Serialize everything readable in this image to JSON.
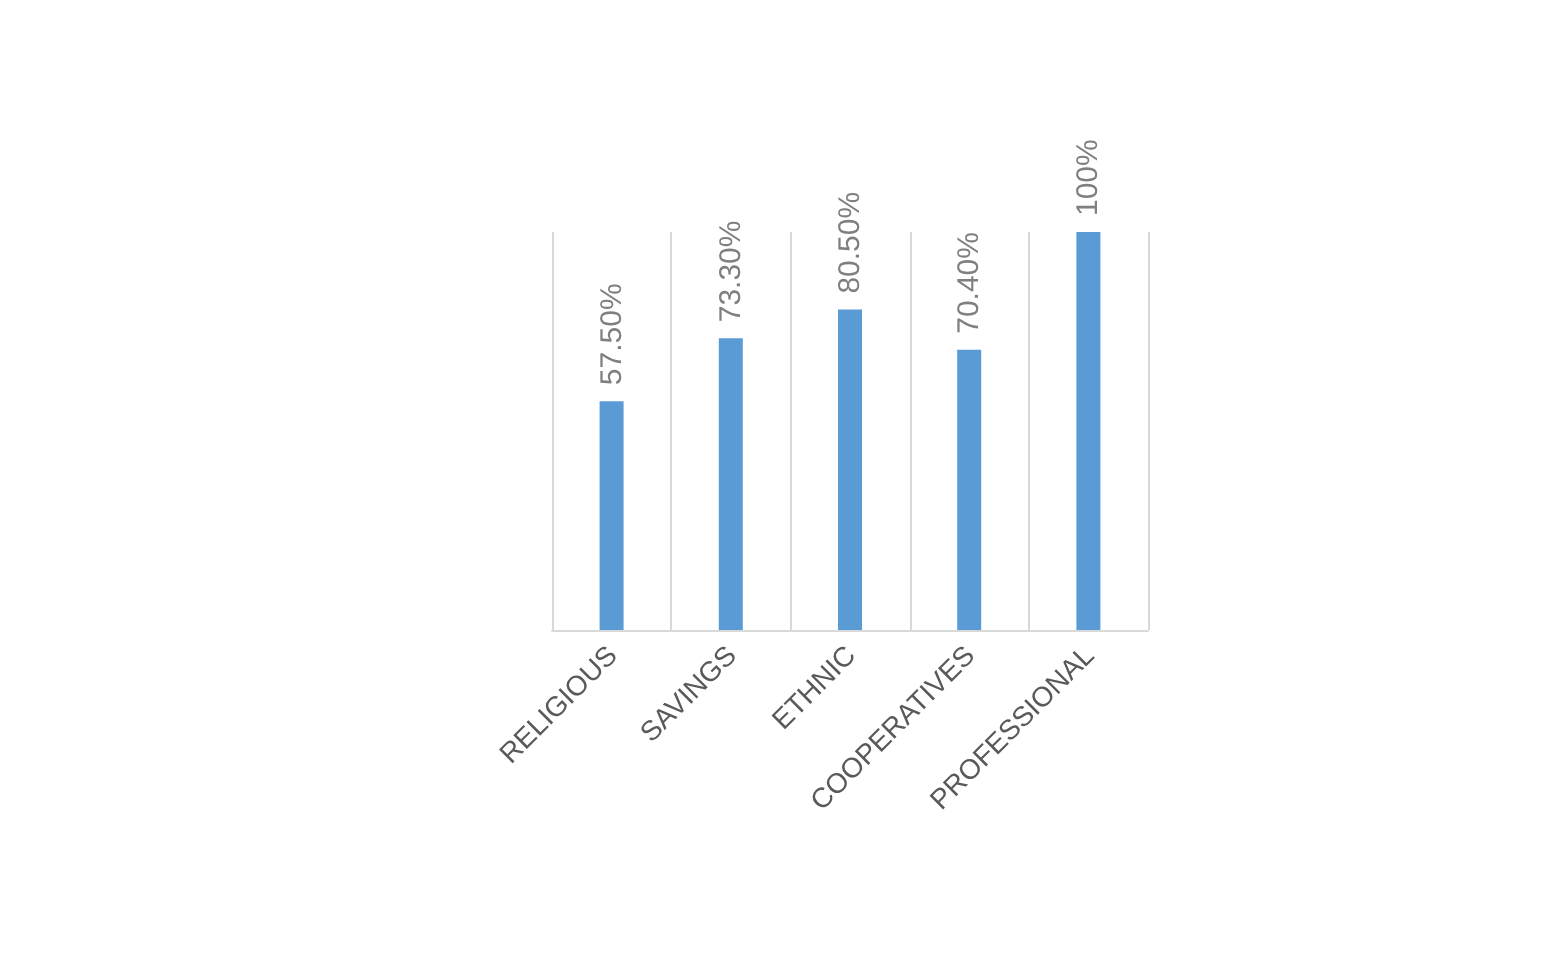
{
  "chart_data": {
    "type": "bar",
    "categories": [
      "RELIGIOUS",
      "SAVINGS",
      "ETHNIC",
      "COOPERATIVES",
      "PROFESSIONAL"
    ],
    "values": [
      57.5,
      73.3,
      80.5,
      70.4,
      100
    ],
    "value_labels": [
      "57.50%",
      "73.30%",
      "80.50%",
      "70.40%",
      "100%"
    ],
    "color": "#5b9bd5",
    "grid": "x"
  }
}
